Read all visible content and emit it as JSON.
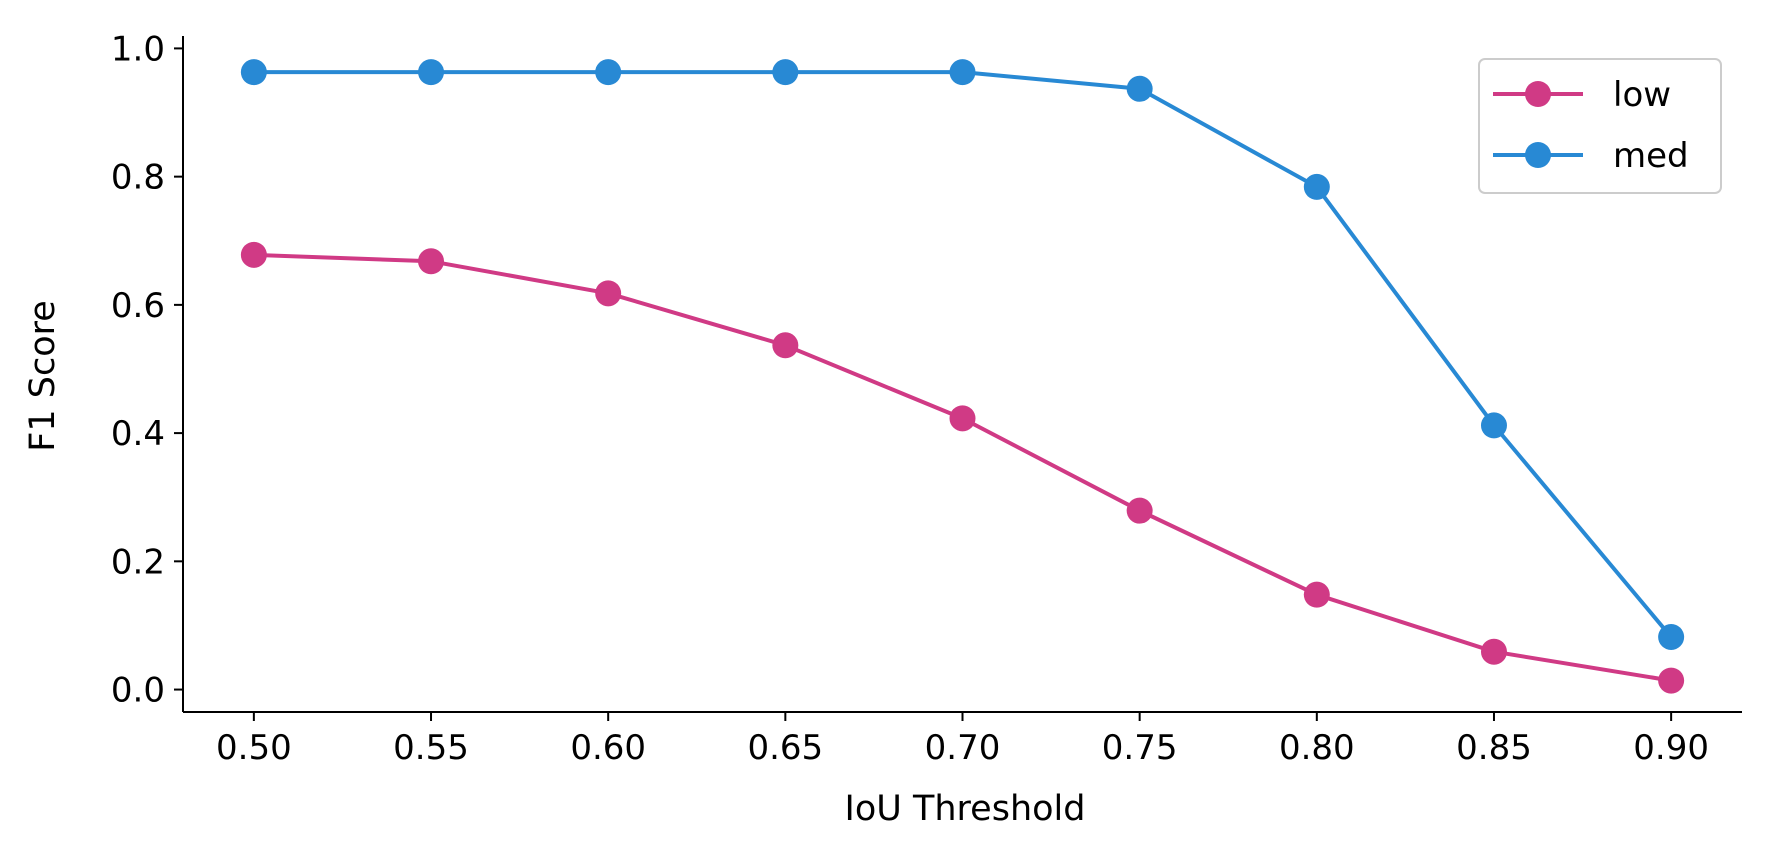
{
  "chart_data": {
    "type": "line",
    "title": "",
    "xlabel": "IoU Threshold",
    "ylabel": "F1 Score",
    "x": [
      0.5,
      0.55,
      0.6,
      0.65,
      0.7,
      0.75,
      0.8,
      0.85,
      0.9
    ],
    "x_tick_labels": [
      "0.50",
      "0.55",
      "0.60",
      "0.65",
      "0.70",
      "0.75",
      "0.80",
      "0.85",
      "0.90"
    ],
    "y_ticks": [
      0.0,
      0.2,
      0.4,
      0.6,
      0.8,
      1.0
    ],
    "y_tick_labels": [
      "0.0",
      "0.2",
      "0.4",
      "0.6",
      "0.8",
      "1.0"
    ],
    "xlim": [
      0.48,
      0.92
    ],
    "ylim": [
      -0.035,
      1.01
    ],
    "grid": false,
    "legend_position": "top-right",
    "series": [
      {
        "name": "low",
        "color": "#d03a85",
        "marker": "circle",
        "values": [
          0.678,
          0.668,
          0.618,
          0.537,
          0.423,
          0.279,
          0.148,
          0.059,
          0.014
        ]
      },
      {
        "name": "med",
        "color": "#2889d4",
        "marker": "circle",
        "values": [
          0.963,
          0.963,
          0.963,
          0.963,
          0.963,
          0.937,
          0.784,
          0.412,
          0.082
        ]
      }
    ]
  }
}
